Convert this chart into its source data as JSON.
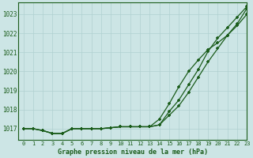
{
  "title": "Graphe pression niveau de la mer (hPa)",
  "bg_color": "#cce5e5",
  "grid_color": "#b0d0d0",
  "line_color": "#1a5c1a",
  "text_color": "#1a5c1a",
  "xlim": [
    -0.5,
    23
  ],
  "ylim": [
    1016.4,
    1023.6
  ],
  "yticks": [
    1017,
    1018,
    1019,
    1020,
    1021,
    1022,
    1023
  ],
  "xticks": [
    0,
    1,
    2,
    3,
    4,
    5,
    6,
    7,
    8,
    9,
    10,
    11,
    12,
    13,
    14,
    15,
    16,
    17,
    18,
    19,
    20,
    21,
    22,
    23
  ],
  "series1": [
    1017.0,
    1017.0,
    1016.9,
    1016.75,
    1016.75,
    1017.0,
    1017.0,
    1017.0,
    1017.0,
    1017.05,
    1017.1,
    1017.1,
    1017.1,
    1017.1,
    1017.2,
    1017.7,
    1018.2,
    1018.9,
    1019.7,
    1020.5,
    1021.2,
    1021.9,
    1022.5,
    1023.3
  ],
  "series2": [
    1017.0,
    1017.0,
    1016.9,
    1016.75,
    1016.75,
    1017.0,
    1017.0,
    1017.0,
    1017.0,
    1017.05,
    1017.1,
    1017.1,
    1017.1,
    1017.1,
    1017.2,
    1017.9,
    1018.5,
    1019.3,
    1020.1,
    1021.05,
    1021.75,
    1022.3,
    1022.85,
    1023.4
  ],
  "series3": [
    1017.0,
    1017.0,
    1016.9,
    1016.75,
    1016.75,
    1017.0,
    1017.0,
    1017.0,
    1017.0,
    1017.05,
    1017.1,
    1017.1,
    1017.1,
    1017.1,
    1017.5,
    1018.3,
    1019.2,
    1020.0,
    1020.6,
    1021.15,
    1021.5,
    1021.9,
    1022.4,
    1023.0
  ]
}
